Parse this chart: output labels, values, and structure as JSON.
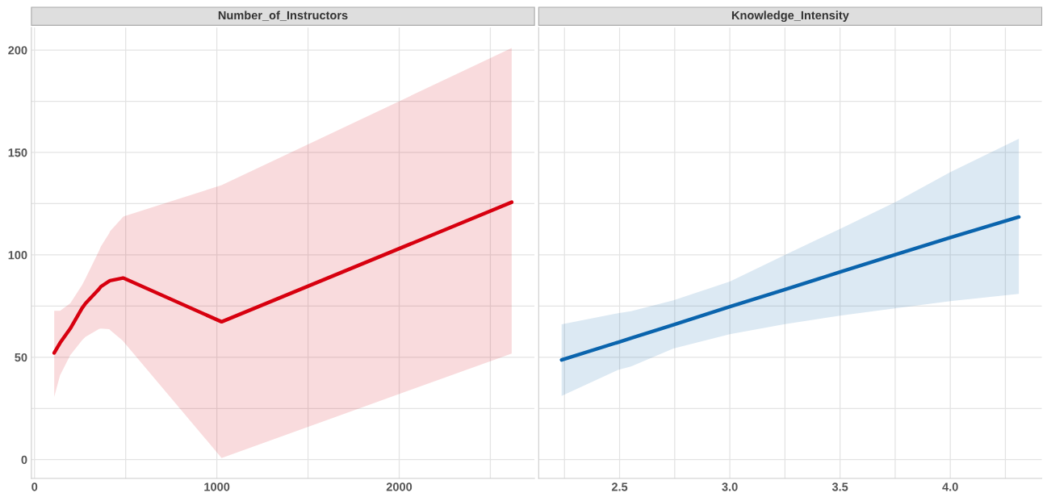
{
  "chart_data": [
    {
      "type": "line",
      "title": "Number_of_Instructors",
      "grid": true,
      "marker": "none",
      "line_style": "solid",
      "xlim": [
        -17,
        2742
      ],
      "xticks": [
        0,
        {
          "value": 500,
          "label": null
        },
        1000,
        {
          "value": 1500,
          "label": null
        },
        2000,
        {
          "value": 2500,
          "label": null
        }
      ],
      "ylim": [
        -9.2,
        211
      ],
      "yticks": [
        0,
        {
          "value": 25,
          "label": null
        },
        50,
        {
          "value": 75,
          "label": null
        },
        100,
        {
          "value": 125,
          "label": null
        },
        150,
        {
          "value": 175,
          "label": null
        },
        200
      ],
      "series": [
        {
          "color": "#d7000f",
          "x": [
            108,
            140,
            196,
            261,
            280,
            354,
            364,
            410,
            414,
            485,
            489,
            1026,
            2617
          ],
          "values": [
            52.1,
            57,
            64,
            74,
            76.3,
            83.3,
            84.5,
            87.2,
            87.4,
            88.7,
            88.6,
            67.3,
            125.7
          ],
          "upper": [
            72.7,
            72.7,
            76.3,
            85.3,
            88.5,
            102,
            104.1,
            110.6,
            111.5,
            118.5,
            118.8,
            134,
            201
          ],
          "lower": [
            30.6,
            41.2,
            51,
            58.3,
            60,
            63.8,
            64,
            63.7,
            63.3,
            58,
            57.5,
            0.8,
            51.8
          ]
        }
      ]
    },
    {
      "type": "line",
      "title": "Knowledge_Intensity",
      "grid": true,
      "marker": "none",
      "line_style": "solid",
      "tick_labels": "x",
      "xlim": [
        2.133,
        4.415
      ],
      "xticks": [
        {
          "value": 2.25,
          "label": null
        },
        2.5,
        {
          "value": 2.75,
          "label": null
        },
        {
          "value": 3.0,
          "label": "3.0"
        },
        {
          "value": 3.25,
          "label": null
        },
        3.5,
        {
          "value": 3.75,
          "label": null
        },
        {
          "value": 4.0,
          "label": "4.0"
        },
        {
          "value": 4.25,
          "label": null
        }
      ],
      "ylim": [
        -9.2,
        211
      ],
      "yticks": [
        0,
        {
          "value": 25,
          "label": null
        },
        50,
        {
          "value": 75,
          "label": null
        },
        100,
        {
          "value": 125,
          "label": null
        },
        150,
        {
          "value": 175,
          "label": null
        },
        200
      ],
      "series": [
        {
          "color": "#0a64ad",
          "x": [
            2.237,
            2.493,
            2.552,
            2.744,
            3.0,
            3.25,
            3.5,
            3.748,
            4.001,
            4.311
          ],
          "values": [
            48.7,
            57.3,
            59.3,
            65.8,
            74.7,
            83.1,
            91.6,
            100,
            108.5,
            118.5
          ],
          "upper": [
            66.1,
            71.5,
            72.5,
            77.8,
            87,
            100,
            112.7,
            125.6,
            140.4,
            156.7
          ],
          "lower": [
            31.1,
            43.8,
            45.5,
            54.3,
            61.2,
            66.2,
            70.3,
            73.9,
            77.4,
            80.9
          ]
        }
      ]
    }
  ]
}
